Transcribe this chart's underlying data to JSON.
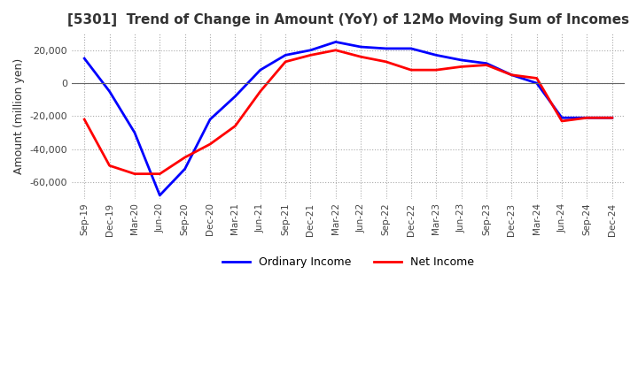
{
  "title": "[5301]  Trend of Change in Amount (YoY) of 12Mo Moving Sum of Incomes",
  "ylabel": "Amount (million yen)",
  "x_labels": [
    "Sep-19",
    "Dec-19",
    "Mar-20",
    "Jun-20",
    "Sep-20",
    "Dec-20",
    "Mar-21",
    "Jun-21",
    "Sep-21",
    "Dec-21",
    "Mar-22",
    "Jun-22",
    "Sep-22",
    "Dec-22",
    "Mar-23",
    "Jun-23",
    "Sep-23",
    "Dec-23",
    "Mar-24",
    "Jun-24",
    "Sep-24",
    "Dec-24"
  ],
  "ordinary_income": [
    15000,
    -5000,
    -30000,
    -68000,
    -52000,
    -22000,
    -8000,
    8000,
    17000,
    20000,
    25000,
    22000,
    21000,
    21000,
    17000,
    14000,
    12000,
    5000,
    0,
    -21000,
    -21000,
    -21000
  ],
  "net_income": [
    -22000,
    -50000,
    -55000,
    -55000,
    -45000,
    -37000,
    -26000,
    -5000,
    13000,
    17000,
    20000,
    16000,
    13000,
    8000,
    8000,
    10000,
    11000,
    5000,
    3000,
    -23000,
    -21000,
    -21000
  ],
  "ordinary_color": "#0000ff",
  "net_color": "#ff0000",
  "ylim_min": -70000,
  "ylim_max": 30000,
  "yticks": [
    20000,
    0,
    -20000,
    -40000,
    -60000
  ],
  "background_color": "#ffffff",
  "grid_color": "#aaaaaa",
  "grid_style": "dotted"
}
